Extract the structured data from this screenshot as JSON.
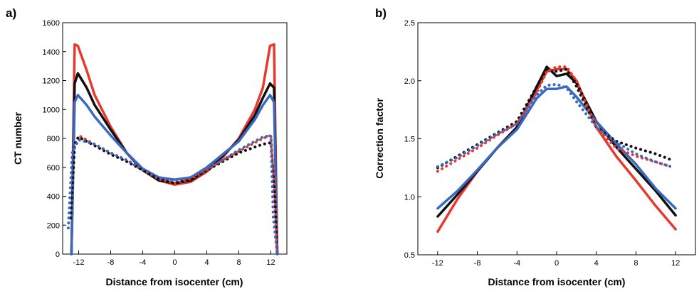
{
  "colors": {
    "black": "#111111",
    "blue": "#3a6ac0",
    "red": "#e8392f"
  },
  "chart_data": [
    {
      "type": "line",
      "panel_label": "a)",
      "xlabel": "Distance from isocenter (cm)",
      "ylabel": "CT number",
      "xlim": [
        -14,
        14
      ],
      "ylim": [
        0,
        1600
      ],
      "xticks": [
        -12,
        -8,
        -4,
        0,
        4,
        8,
        12
      ],
      "yticks": [
        0,
        200,
        400,
        600,
        800,
        1000,
        1200,
        1400,
        1600
      ],
      "grid": false,
      "series": [
        {
          "color": "red",
          "style": "solid",
          "x": [
            -12.9,
            -12.5,
            -12.1,
            -11,
            -10,
            -8,
            -6,
            -4,
            -2,
            0,
            2,
            4,
            6,
            8,
            10,
            11,
            11.9,
            12.4,
            12.8
          ],
          "y": [
            0,
            1450,
            1440,
            1270,
            1100,
            880,
            700,
            580,
            510,
            480,
            500,
            570,
            670,
            800,
            1000,
            1150,
            1440,
            1450,
            0
          ]
        },
        {
          "color": "black",
          "style": "solid",
          "x": [
            -12.9,
            -12.5,
            -12.1,
            -11,
            -10,
            -8,
            -6,
            -4,
            -2,
            0,
            2,
            4,
            6,
            8,
            10,
            11,
            11.9,
            12.4,
            12.8
          ],
          "y": [
            0,
            1180,
            1250,
            1150,
            1030,
            860,
            700,
            580,
            510,
            490,
            510,
            580,
            680,
            790,
            960,
            1080,
            1180,
            1150,
            0
          ]
        },
        {
          "color": "blue",
          "style": "solid",
          "x": [
            -12.9,
            -12.5,
            -12.1,
            -11,
            -10,
            -8,
            -6,
            -4,
            -2,
            0,
            2,
            4,
            6,
            8,
            10,
            11,
            11.9,
            12.4,
            12.8
          ],
          "y": [
            0,
            1050,
            1100,
            1030,
            950,
            820,
            700,
            590,
            530,
            515,
            530,
            600,
            690,
            780,
            930,
            1030,
            1100,
            1050,
            0
          ]
        },
        {
          "color": "red",
          "style": "dotted",
          "x": [
            -13,
            -12.5,
            -12,
            -10,
            -8,
            -6,
            -4,
            -2,
            0,
            2,
            4,
            6,
            8,
            10,
            11,
            12,
            12.5,
            12.8
          ],
          "y": [
            250,
            750,
            820,
            760,
            700,
            650,
            580,
            520,
            490,
            520,
            580,
            650,
            710,
            770,
            800,
            820,
            400,
            0
          ]
        },
        {
          "color": "black",
          "style": "dotted",
          "x": [
            -13,
            -12.5,
            -12,
            -10,
            -8,
            -6,
            -4,
            -2,
            0,
            2,
            4,
            6,
            8,
            10,
            11,
            12,
            12.5,
            12.8
          ],
          "y": [
            250,
            760,
            810,
            750,
            690,
            640,
            580,
            520,
            490,
            520,
            580,
            640,
            700,
            740,
            760,
            770,
            400,
            0
          ]
        },
        {
          "color": "blue",
          "style": "dotted",
          "x": [
            -13.3,
            -12.8,
            -12,
            -10,
            -8,
            -6,
            -4,
            -2,
            0,
            2,
            4,
            6,
            8,
            10,
            11,
            12,
            12.3,
            12.8
          ],
          "y": [
            180,
            700,
            790,
            760,
            700,
            650,
            590,
            530,
            510,
            530,
            590,
            650,
            720,
            780,
            810,
            820,
            260,
            0
          ]
        }
      ]
    },
    {
      "type": "line",
      "panel_label": "b)",
      "xlabel": "Distance from isocenter (cm)",
      "ylabel": "Correction factor",
      "xlim": [
        -14,
        14
      ],
      "ylim": [
        0.5,
        2.5
      ],
      "xticks": [
        -12,
        -8,
        -4,
        0,
        4,
        8,
        12
      ],
      "yticks": [
        "0.5",
        "1.0",
        "1.5",
        "2.0",
        "2.5"
      ],
      "grid": false,
      "series": [
        {
          "color": "red",
          "style": "solid",
          "x": [
            -12,
            -10,
            -8,
            -6,
            -4,
            -2,
            -1,
            0,
            1,
            2,
            4,
            6,
            8,
            10,
            12
          ],
          "y": [
            0.7,
            0.98,
            1.22,
            1.42,
            1.6,
            1.92,
            2.08,
            2.1,
            2.1,
            2.0,
            1.6,
            1.35,
            1.14,
            0.92,
            0.72
          ]
        },
        {
          "color": "black",
          "style": "solid",
          "x": [
            -12,
            -10,
            -8,
            -6,
            -4,
            -2,
            -1,
            0,
            1,
            2,
            4,
            6,
            8,
            10,
            12
          ],
          "y": [
            0.83,
            1.02,
            1.22,
            1.42,
            1.6,
            1.95,
            2.12,
            2.04,
            2.06,
            1.98,
            1.65,
            1.43,
            1.24,
            1.05,
            0.84
          ]
        },
        {
          "color": "blue",
          "style": "solid",
          "x": [
            -12,
            -10,
            -8,
            -6,
            -4,
            -2,
            -1,
            0,
            1,
            2,
            4,
            6,
            8,
            10,
            12
          ],
          "y": [
            0.9,
            1.05,
            1.23,
            1.42,
            1.58,
            1.85,
            1.93,
            1.93,
            1.95,
            1.86,
            1.65,
            1.46,
            1.28,
            1.07,
            0.9
          ]
        },
        {
          "color": "black",
          "style": "dotted",
          "x": [
            -12,
            -10,
            -8,
            -6,
            -4,
            -2,
            -1,
            0,
            1,
            2,
            4,
            6,
            8,
            10,
            11.5
          ],
          "y": [
            1.25,
            1.35,
            1.45,
            1.55,
            1.65,
            1.95,
            2.1,
            2.08,
            2.1,
            1.95,
            1.6,
            1.48,
            1.42,
            1.37,
            1.32
          ]
        },
        {
          "color": "red",
          "style": "dotted",
          "x": [
            -12,
            -10,
            -8,
            -6,
            -4,
            -2,
            -1,
            0,
            1,
            2,
            4,
            6,
            8,
            10,
            11.5
          ],
          "y": [
            1.22,
            1.32,
            1.42,
            1.53,
            1.63,
            1.9,
            2.08,
            2.12,
            2.12,
            2.0,
            1.6,
            1.42,
            1.35,
            1.3,
            1.26
          ]
        },
        {
          "color": "blue",
          "style": "dotted",
          "x": [
            -12,
            -10,
            -8,
            -6,
            -4,
            -2,
            -1,
            0,
            1,
            2,
            4,
            6,
            8,
            10,
            11.5
          ],
          "y": [
            1.26,
            1.34,
            1.44,
            1.54,
            1.63,
            1.88,
            1.96,
            1.97,
            1.94,
            1.82,
            1.6,
            1.47,
            1.37,
            1.3,
            1.26
          ]
        }
      ]
    }
  ]
}
